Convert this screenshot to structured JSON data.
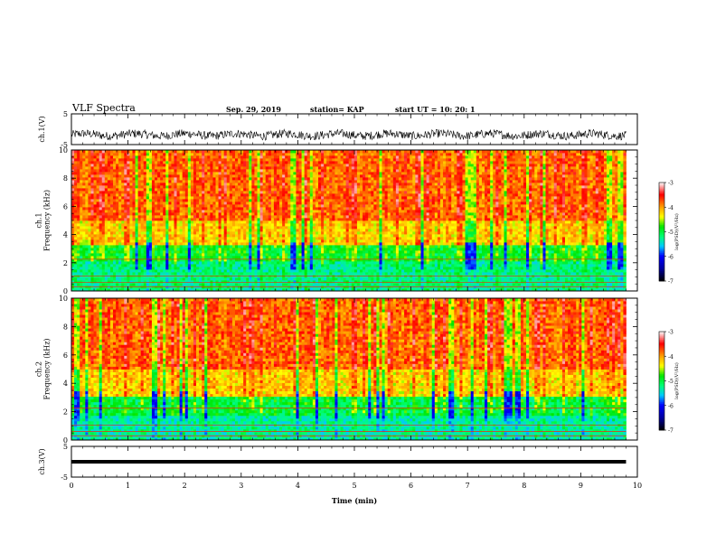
{
  "header": {
    "title": "VLF Spectra",
    "date": "Sep. 29, 2019",
    "station": "station= KAP",
    "start": "start  UT  =    10: 20: 1"
  },
  "chart_data": [
    {
      "type": "line",
      "panel": "waveform-ch1",
      "ylabel": "ch.1(V)",
      "yticks": [
        "5",
        "-5"
      ],
      "ylim": [
        -5,
        5
      ],
      "xlim": [
        0,
        10
      ],
      "color": "#000000",
      "signal": "noisy waveform centered near -1.8 V with amplitude roughly ±1.5 V, extending to about t=9.8 min"
    },
    {
      "type": "heatmap",
      "panel": "spectrogram-ch1",
      "ylabel": "ch.1\nFrequency  (kHz)",
      "ylim": [
        0,
        10
      ],
      "yticks": [
        "0",
        "2",
        "4",
        "6",
        "8",
        "10"
      ],
      "xlim": [
        0,
        9.8
      ],
      "colorbar": {
        "label": "log(PSD)(V²/Hz)",
        "min": -7,
        "max": -3,
        "ticks": [
          "-3",
          "-4",
          "-5",
          "-6",
          "-7"
        ]
      },
      "bands": [
        {
          "from_khz": 0,
          "to_khz": 2.2,
          "level": -5.2
        },
        {
          "from_khz": 2.2,
          "to_khz": 3.2,
          "level": -4.9
        },
        {
          "from_khz": 3.2,
          "to_khz": 5,
          "level": -4.2
        },
        {
          "from_khz": 5,
          "to_khz": 10,
          "level": -3.8
        }
      ]
    },
    {
      "type": "heatmap",
      "panel": "spectrogram-ch2",
      "ylabel": "ch.2\nFrequency  (kHz)",
      "ylim": [
        0,
        10
      ],
      "yticks": [
        "0",
        "2",
        "4",
        "6",
        "8",
        "10"
      ],
      "xlim": [
        0,
        9.8
      ],
      "colorbar": {
        "label": "log(PSD)(V²/Hz)",
        "min": -7,
        "max": -3,
        "ticks": [
          "-3",
          "-4",
          "-5",
          "-6",
          "-7"
        ]
      },
      "bands": [
        {
          "from_khz": 0,
          "to_khz": 1.8,
          "level": -5.3
        },
        {
          "from_khz": 1.8,
          "to_khz": 3,
          "level": -5.0
        },
        {
          "from_khz": 3,
          "to_khz": 5,
          "level": -4.2
        },
        {
          "from_khz": 5,
          "to_khz": 10,
          "level": -3.8
        }
      ]
    },
    {
      "type": "line",
      "panel": "waveform-ch3",
      "ylabel": "ch.3(V)",
      "yticks": [
        "5",
        "-5"
      ],
      "ylim": [
        -5,
        5
      ],
      "xlim": [
        0,
        10
      ],
      "color": "#000000",
      "signal": "flat line at about 0 V",
      "level": 0
    }
  ],
  "xaxis": {
    "label": "Time  (min)",
    "ticks": [
      "0",
      "1",
      "2",
      "3",
      "4",
      "5",
      "6",
      "7",
      "8",
      "9",
      "10"
    ]
  },
  "colors": {
    "colormap": [
      "#000080",
      "#0000ff",
      "#00ffff",
      "#00ff00",
      "#ffff00",
      "#ff8000",
      "#ff0000",
      "#ffffff"
    ]
  }
}
